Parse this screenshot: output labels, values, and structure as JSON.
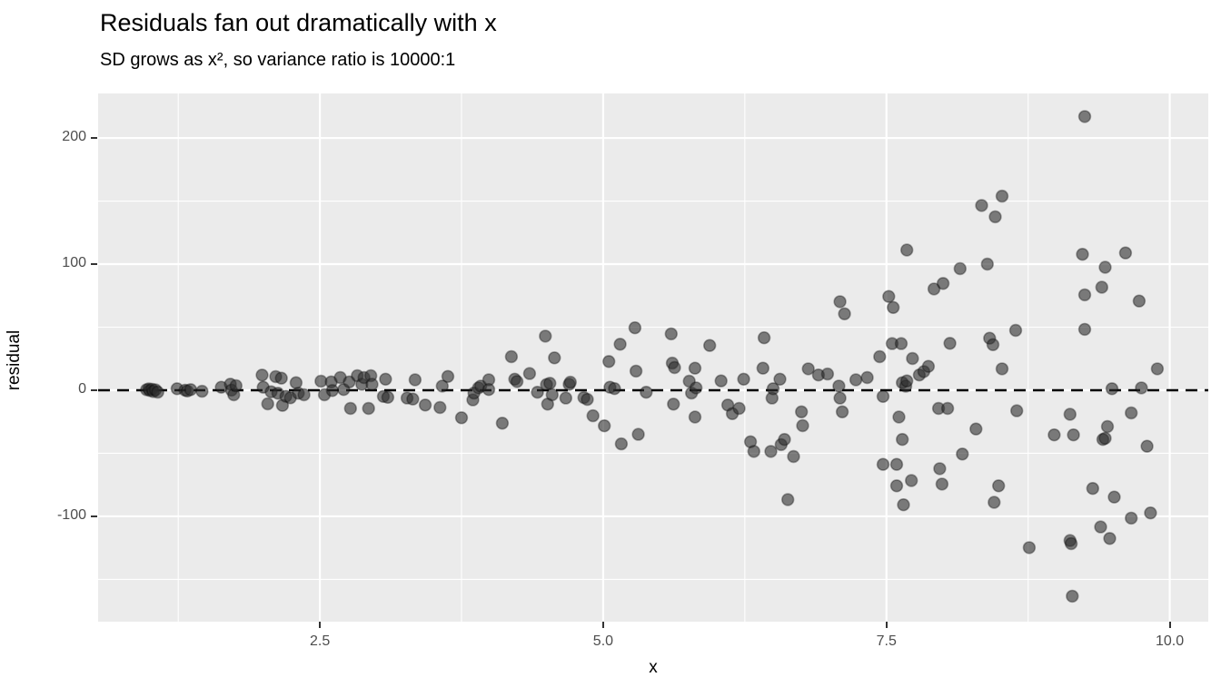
{
  "style": {
    "background": "#FFFFFF",
    "panel_bg": "#EBEBEB",
    "grid_color": "#FFFFFF",
    "tick_text_color": "#4D4D4D",
    "tick_mark_color": "#333333",
    "reference_line_color": "#000000",
    "point_fill": "rgba(45,45,45,0.6)",
    "point_stroke": "rgba(10,10,10,0.35)"
  },
  "chart_data": {
    "type": "scatter",
    "title": "Residuals fan out dramatically with x",
    "subtitle": "SD grows as x², so variance ratio is 10000:1",
    "xlabel": "x",
    "ylabel": "residual",
    "xlim": [
      0.543,
      10.34
    ],
    "ylim": [
      -183.5,
      235.3
    ],
    "x_ticks": [
      2.5,
      5.0,
      7.5,
      10.0
    ],
    "x_tick_labels": [
      "2.5",
      "5.0",
      "7.5",
      "10.0"
    ],
    "y_ticks": [
      200,
      100,
      0,
      -100
    ],
    "y_tick_labels": [
      "200",
      "100",
      "0",
      "-100"
    ],
    "x_minor_breaks": [
      1.25,
      3.75,
      6.25,
      8.75
    ],
    "y_minor_breaks": [
      150,
      50,
      -50,
      -150
    ],
    "grid": "major+minor, white on grey panel",
    "legend_position": "none",
    "reference_line": {
      "type": "hline",
      "y": 0,
      "linetype": "dashed",
      "color": "#000000"
    },
    "points": [
      [
        0.97,
        0.4
      ],
      [
        0.99,
        1.1
      ],
      [
        1.0,
        -0.2
      ],
      [
        1.02,
        0.8
      ],
      [
        1.03,
        -1.0
      ],
      [
        1.05,
        0.3
      ],
      [
        1.07,
        -1.5
      ],
      [
        1.24,
        1.2
      ],
      [
        1.31,
        0.1
      ],
      [
        1.33,
        -0.6
      ],
      [
        1.36,
        0.5
      ],
      [
        1.46,
        -0.8
      ],
      [
        1.63,
        2.4
      ],
      [
        1.71,
        4.8
      ],
      [
        1.72,
        0.1
      ],
      [
        1.74,
        -3.6
      ],
      [
        1.76,
        3.6
      ],
      [
        1.99,
        12.0
      ],
      [
        2.0,
        2.4
      ],
      [
        2.04,
        -10.8
      ],
      [
        2.07,
        -1.2
      ],
      [
        2.11,
        10.8
      ],
      [
        2.13,
        -2.4
      ],
      [
        2.16,
        9.6
      ],
      [
        2.17,
        -12.0
      ],
      [
        2.2,
        -4.8
      ],
      [
        2.24,
        -6.0
      ],
      [
        2.29,
        6.0
      ],
      [
        2.31,
        -2.4
      ],
      [
        2.36,
        -3.6
      ],
      [
        2.51,
        7.2
      ],
      [
        2.54,
        -3.6
      ],
      [
        2.6,
        6.6
      ],
      [
        2.61,
        -0.2
      ],
      [
        2.68,
        10.1
      ],
      [
        2.71,
        0.6
      ],
      [
        2.76,
        6.6
      ],
      [
        2.77,
        -14.4
      ],
      [
        2.83,
        11.5
      ],
      [
        2.87,
        4.7
      ],
      [
        2.89,
        10.1
      ],
      [
        2.93,
        -14.4
      ],
      [
        2.95,
        11.5
      ],
      [
        2.96,
        4.7
      ],
      [
        3.06,
        -4.9
      ],
      [
        3.08,
        8.8
      ],
      [
        3.1,
        -5.6
      ],
      [
        3.27,
        -6.2
      ],
      [
        3.32,
        -7.0
      ],
      [
        3.34,
        8.3
      ],
      [
        3.43,
        -11.7
      ],
      [
        3.56,
        -13.7
      ],
      [
        3.58,
        3.3
      ],
      [
        3.63,
        10.9
      ],
      [
        3.75,
        -21.8
      ],
      [
        3.85,
        -7.6
      ],
      [
        3.86,
        -2.2
      ],
      [
        3.9,
        1.9
      ],
      [
        3.92,
        3.3
      ],
      [
        3.99,
        8.3
      ],
      [
        3.99,
        0.6
      ],
      [
        4.11,
        -26.1
      ],
      [
        4.19,
        26.6
      ],
      [
        4.22,
        8.8
      ],
      [
        4.24,
        6.9
      ],
      [
        4.35,
        13.2
      ],
      [
        4.42,
        -1.6
      ],
      [
        4.49,
        42.9
      ],
      [
        4.5,
        4.5
      ],
      [
        4.51,
        -11.0
      ],
      [
        4.53,
        5.5
      ],
      [
        4.55,
        -3.6
      ],
      [
        4.57,
        25.7
      ],
      [
        4.67,
        -6.2
      ],
      [
        4.7,
        4.7
      ],
      [
        4.71,
        6.4
      ],
      [
        4.83,
        -5.8
      ],
      [
        4.86,
        -7.3
      ],
      [
        4.91,
        -20.2
      ],
      [
        5.01,
        -28.2
      ],
      [
        5.05,
        22.8
      ],
      [
        5.06,
        2.4
      ],
      [
        5.1,
        1.3
      ],
      [
        5.15,
        36.5
      ],
      [
        5.16,
        -42.5
      ],
      [
        5.28,
        49.5
      ],
      [
        5.29,
        15.2
      ],
      [
        5.31,
        -35.0
      ],
      [
        5.38,
        -1.6
      ],
      [
        5.6,
        44.7
      ],
      [
        5.61,
        21.5
      ],
      [
        5.63,
        18.0
      ],
      [
        5.62,
        -11.0
      ],
      [
        5.76,
        7.2
      ],
      [
        5.78,
        -2.2
      ],
      [
        5.81,
        17.5
      ],
      [
        5.82,
        1.9
      ],
      [
        5.81,
        -21.2
      ],
      [
        5.94,
        35.5
      ],
      [
        6.04,
        7.4
      ],
      [
        6.1,
        -11.7
      ],
      [
        6.14,
        -18.6
      ],
      [
        6.2,
        -14.4
      ],
      [
        6.24,
        8.8
      ],
      [
        6.3,
        -40.9
      ],
      [
        6.33,
        -48.5
      ],
      [
        6.41,
        17.5
      ],
      [
        6.42,
        41.6
      ],
      [
        6.48,
        -48.5
      ],
      [
        6.49,
        -6.2
      ],
      [
        6.5,
        1.2
      ],
      [
        6.56,
        8.8
      ],
      [
        6.57,
        -43.1
      ],
      [
        6.6,
        -39.0
      ],
      [
        6.63,
        -86.7
      ],
      [
        6.68,
        -52.5
      ],
      [
        6.75,
        -17.1
      ],
      [
        6.76,
        -28.1
      ],
      [
        6.81,
        17.0
      ],
      [
        6.9,
        12.1
      ],
      [
        6.98,
        12.9
      ],
      [
        7.08,
        3.3
      ],
      [
        7.09,
        70.2
      ],
      [
        7.09,
        -6.2
      ],
      [
        7.11,
        -17.1
      ],
      [
        7.13,
        60.6
      ],
      [
        7.23,
        8.3
      ],
      [
        7.33,
        10.1
      ],
      [
        7.44,
        26.6
      ],
      [
        7.47,
        -4.9
      ],
      [
        7.47,
        -58.8
      ],
      [
        7.52,
        74.3
      ],
      [
        7.55,
        37.0
      ],
      [
        7.56,
        65.6
      ],
      [
        7.59,
        -58.8
      ],
      [
        7.59,
        -75.8
      ],
      [
        7.61,
        -21.2
      ],
      [
        7.63,
        37.0
      ],
      [
        7.64,
        -39.0
      ],
      [
        7.64,
        6.0
      ],
      [
        7.65,
        -90.8
      ],
      [
        7.67,
        3.2
      ],
      [
        7.68,
        7.4
      ],
      [
        7.68,
        111.2
      ],
      [
        7.72,
        -71.6
      ],
      [
        7.73,
        25.2
      ],
      [
        7.79,
        12.1
      ],
      [
        7.83,
        14.8
      ],
      [
        7.87,
        18.9
      ],
      [
        7.92,
        80.3
      ],
      [
        7.96,
        -14.4
      ],
      [
        7.97,
        -62.2
      ],
      [
        7.99,
        -74.4
      ],
      [
        8.0,
        84.7
      ],
      [
        8.04,
        -14.4
      ],
      [
        8.06,
        37.2
      ],
      [
        8.15,
        96.4
      ],
      [
        8.17,
        -50.6
      ],
      [
        8.29,
        -30.7
      ],
      [
        8.34,
        146.5
      ],
      [
        8.39,
        100.0
      ],
      [
        8.41,
        41.2
      ],
      [
        8.44,
        36.1
      ],
      [
        8.46,
        137.5
      ],
      [
        8.45,
        -88.9
      ],
      [
        8.49,
        -75.8
      ],
      [
        8.52,
        153.9
      ],
      [
        8.52,
        17.0
      ],
      [
        8.64,
        47.5
      ],
      [
        8.65,
        -16.3
      ],
      [
        8.76,
        -124.8
      ],
      [
        8.98,
        -35.4
      ],
      [
        9.12,
        -19.1
      ],
      [
        9.12,
        -119.2
      ],
      [
        9.13,
        -121.6
      ],
      [
        9.14,
        -163.3
      ],
      [
        9.15,
        -35.4
      ],
      [
        9.23,
        107.8
      ],
      [
        9.25,
        217.0
      ],
      [
        9.25,
        75.6
      ],
      [
        9.25,
        48.3
      ],
      [
        9.32,
        -77.9
      ],
      [
        9.39,
        -108.4
      ],
      [
        9.4,
        81.7
      ],
      [
        9.41,
        -39.0
      ],
      [
        9.43,
        97.5
      ],
      [
        9.43,
        -38.1
      ],
      [
        9.45,
        -28.8
      ],
      [
        9.47,
        -117.5
      ],
      [
        9.49,
        1.2
      ],
      [
        9.51,
        -84.7
      ],
      [
        9.61,
        108.9
      ],
      [
        9.66,
        -18.0
      ],
      [
        9.66,
        -101.4
      ],
      [
        9.73,
        70.7
      ],
      [
        9.75,
        1.9
      ],
      [
        9.8,
        -44.4
      ],
      [
        9.83,
        -97.3
      ],
      [
        9.89,
        17.0
      ]
    ]
  }
}
